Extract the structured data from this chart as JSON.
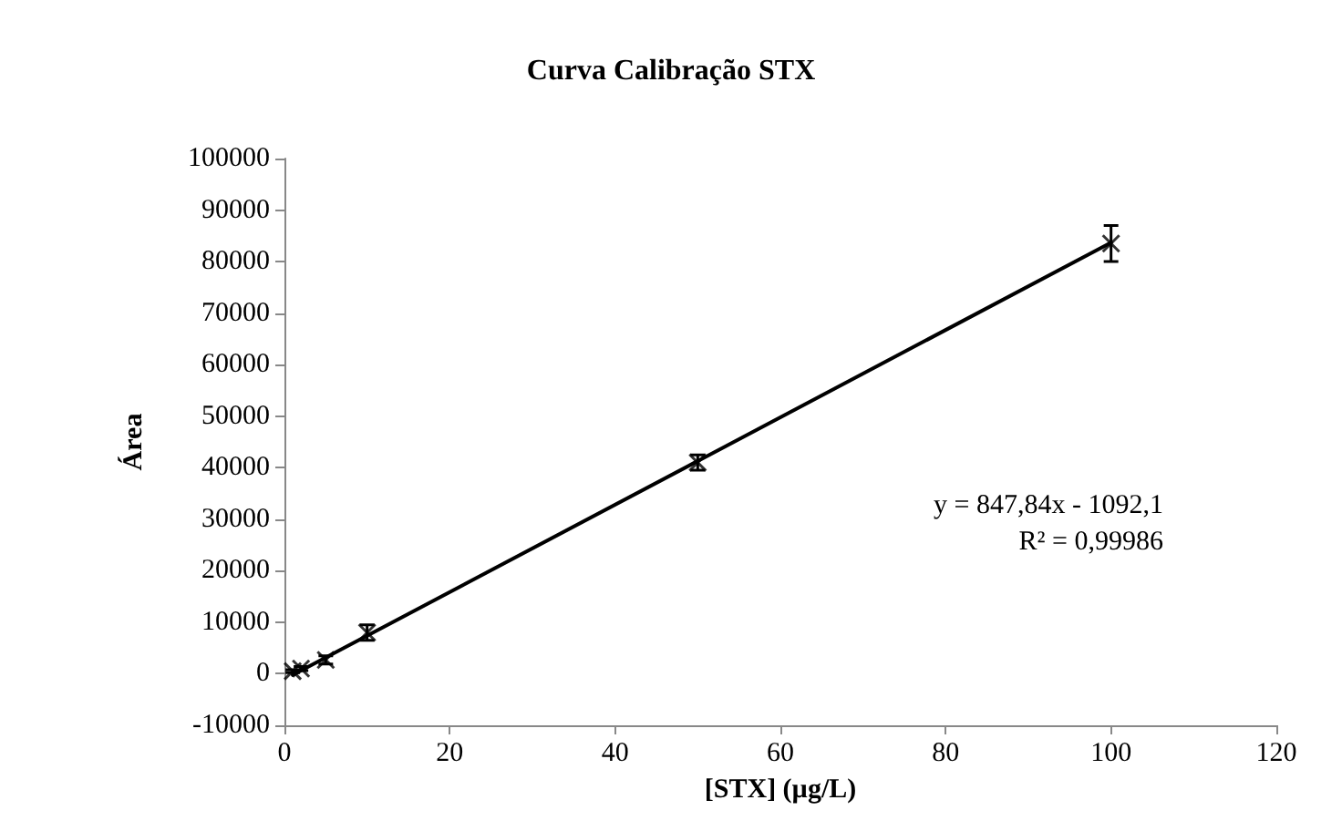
{
  "chart_data": {
    "type": "scatter",
    "title": "Curva Calibração STX",
    "xlabel": "[STX] (µg/L)",
    "ylabel": "Área",
    "x": [
      1,
      2,
      5,
      10,
      50,
      100
    ],
    "series": [
      {
        "color": "#000000",
        "marker": "cross",
        "values": [
          500,
          1000,
          2700,
          8000,
          41000,
          83500
        ],
        "errors": [
          300,
          400,
          800,
          1500,
          1500,
          3500
        ]
      },
      {
        "type": "line",
        "color": "#000000",
        "x": [
          1,
          100
        ],
        "values": [
          -244,
          83692
        ]
      }
    ],
    "xlim": [
      0,
      120
    ],
    "xticks": [
      0,
      20,
      40,
      60,
      80,
      100,
      120
    ],
    "ylim": [
      -10000,
      100000
    ],
    "yticks": [
      -10000,
      0,
      10000,
      20000,
      30000,
      40000,
      50000,
      60000,
      70000,
      80000,
      90000,
      100000
    ],
    "annotations": [
      "y = 847,84x - 1092,1",
      "R² = 0,99986"
    ],
    "grid": false
  }
}
